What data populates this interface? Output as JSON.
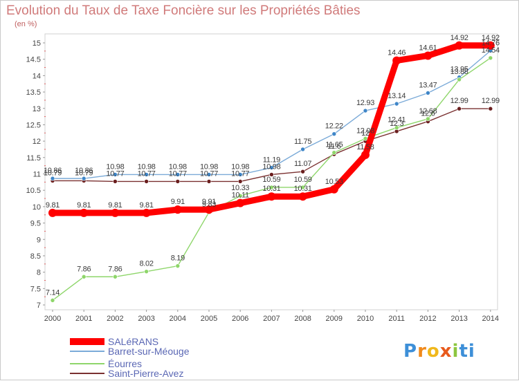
{
  "chart_data": {
    "type": "line",
    "title": "Evolution du Taux de Taxe Foncière sur les Propriétés Bâties",
    "ylabel": "(en %)",
    "xlabel": "",
    "ylim": [
      7,
      15
    ],
    "ytick_labels": [
      "7",
      "7.5",
      "8",
      "8.5",
      "9",
      "9.5",
      "10",
      "10.5",
      "11",
      "11.5",
      "12",
      "12.5",
      "13",
      "13.5",
      "14",
      "14.5",
      "15"
    ],
    "categories": [
      "2000",
      "2001",
      "2002",
      "2003",
      "2004",
      "2005",
      "2006",
      "2007",
      "2008",
      "2009",
      "2010",
      "2011",
      "2012",
      "2013",
      "2014"
    ],
    "series": [
      {
        "name": "SALéRANS",
        "color": "#ff0000",
        "values": [
          9.81,
          9.81,
          9.81,
          9.81,
          9.91,
          9.91,
          10.11,
          10.31,
          10.31,
          10.53,
          11.58,
          14.46,
          14.61,
          14.92,
          14.92
        ],
        "labels": [
          "9.81",
          "9.81",
          "9.81",
          "9.81",
          "9.91",
          "9.91",
          "10.11",
          "10.31",
          "10.31",
          "10.53",
          "11.58",
          "14.46",
          "14.61",
          "14.92",
          "14.92"
        ]
      },
      {
        "name": "Barret-sur-Méouge",
        "color": "#7aaad8",
        "values": [
          10.86,
          10.86,
          10.98,
          10.98,
          10.98,
          10.98,
          10.98,
          11.19,
          11.75,
          12.22,
          12.93,
          13.14,
          13.47,
          13.95,
          14.76
        ],
        "labels": [
          "10.86",
          "10.86",
          "10.98",
          "10.98",
          "10.98",
          "10.98",
          "10.98",
          "11.19",
          "11.75",
          "12.22",
          "12.93",
          "13.14",
          "13.47",
          "13.95",
          "14.76"
        ]
      },
      {
        "name": "Éourres",
        "color": "#8ed66a",
        "values": [
          7.14,
          7.86,
          7.86,
          8.02,
          8.19,
          9.83,
          10.33,
          10.59,
          10.59,
          11.65,
          12.08,
          12.41,
          12.68,
          13.88,
          14.54
        ],
        "labels": [
          "7.14",
          "7.86",
          "7.86",
          "8.02",
          "8.19",
          "9.83",
          "10.33",
          "10.59",
          "10.59",
          "11.65",
          "12.08",
          "12.41",
          "12.68",
          "13.88",
          "14.54"
        ]
      },
      {
        "name": "Saint-Pierre-Avez",
        "color": "#7a3030",
        "values": [
          10.79,
          10.79,
          10.77,
          10.77,
          10.77,
          10.77,
          10.77,
          10.98,
          11.07,
          11.6,
          12.0,
          12.3,
          12.6,
          12.99,
          12.99
        ],
        "labels": [
          "10.79",
          "10.79",
          "10.77",
          "10.77",
          "10.77",
          "10.77",
          "10.77",
          "10.98",
          "11.07",
          "11.6",
          "12",
          "12.3",
          "12.6",
          "12.99",
          "12.99"
        ]
      }
    ],
    "legend": "bottom-left",
    "grid": false
  },
  "brand": {
    "logo_text": "Proxiti",
    "letters": [
      "P",
      "r",
      "o",
      "x",
      "i",
      "t",
      "i"
    ]
  }
}
